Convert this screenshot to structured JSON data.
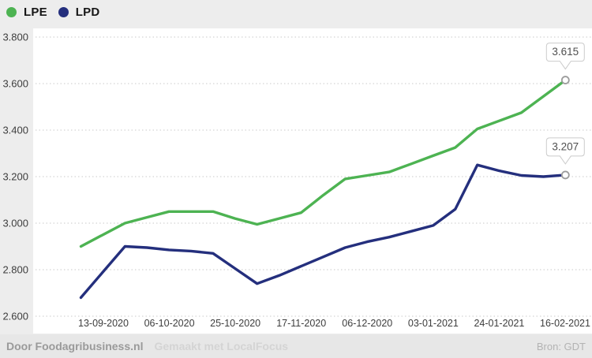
{
  "legend": {
    "items": [
      {
        "label": "LPE",
        "color": "#4db352"
      },
      {
        "label": "LPD",
        "color": "#242f7d"
      }
    ]
  },
  "chart_data": {
    "type": "line",
    "title": "",
    "x_axis_labels": [
      "13-09-2020",
      "06-10-2020",
      "25-10-2020",
      "17-11-2020",
      "06-12-2020",
      "03-01-2021",
      "24-01-2021",
      "16-02-2021"
    ],
    "y_ticks": [
      {
        "label": "3.800",
        "value": 3.8
      },
      {
        "label": "3.600",
        "value": 3.6
      },
      {
        "label": "3.400",
        "value": 3.4
      },
      {
        "label": "3.200",
        "value": 3.2
      },
      {
        "label": "3.000",
        "value": 3.0
      },
      {
        "label": "2.800",
        "value": 2.8
      },
      {
        "label": "2.600",
        "value": 2.6
      }
    ],
    "ylim": [
      2.6,
      3.8
    ],
    "grid": "dotted-horizontal",
    "legend_position": "top-left",
    "series": [
      {
        "name": "LPE",
        "color": "#4db352",
        "values": [
          2.9,
          2.95,
          3.0,
          3.025,
          3.05,
          3.05,
          3.05,
          3.02,
          2.995,
          3.02,
          3.045,
          3.12,
          3.19,
          3.205,
          3.22,
          3.255,
          3.29,
          3.325,
          3.405,
          3.44,
          3.475,
          3.545,
          3.615
        ]
      },
      {
        "name": "LPD",
        "color": "#242f7d",
        "values": [
          2.68,
          2.79,
          2.9,
          2.895,
          2.885,
          2.88,
          2.87,
          2.805,
          2.74,
          2.775,
          2.815,
          2.855,
          2.895,
          2.92,
          2.94,
          2.965,
          2.99,
          3.06,
          3.25,
          3.225,
          3.205,
          3.2,
          3.207
        ]
      }
    ],
    "end_labels": [
      {
        "series": "LPE",
        "label": "3.615"
      },
      {
        "series": "LPD",
        "label": "3.207"
      }
    ]
  },
  "footer": {
    "credit": "Door Foodagribusiness.nl",
    "made_with": "Gemaakt met LocalFocus",
    "source": "Bron: GDT"
  }
}
